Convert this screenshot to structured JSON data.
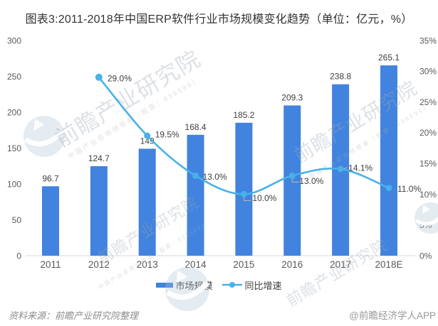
{
  "title": "图表3:2011-2018年中国ERP软件行业市场规模变化趋势（单位：亿元，%）",
  "chart_data": {
    "type": "bar",
    "combo": "bar+line",
    "categories": [
      "2011",
      "2012",
      "2013",
      "2014",
      "2015",
      "2016",
      "2017",
      "2018E"
    ],
    "series": [
      {
        "name": "市场规模",
        "type": "bar",
        "axis": "left",
        "unit": "亿元",
        "values": [
          96.7,
          124.7,
          149,
          168.4,
          185.2,
          209.3,
          238.8,
          265.1
        ],
        "labels": [
          "96.7",
          "124.7",
          "149",
          "168.4",
          "185.2",
          "209.3",
          "238.8",
          "265.1"
        ],
        "color": "#4183de"
      },
      {
        "name": "同比增速",
        "type": "line",
        "axis": "right",
        "unit": "%",
        "values": [
          null,
          29.0,
          19.5,
          13.0,
          10.0,
          13.0,
          14.1,
          11.0
        ],
        "labels": [
          null,
          "29.0%",
          "19.5%",
          "13.0%",
          "10.0%",
          "13.0%",
          "14.1%",
          "11.0%"
        ],
        "color": "#47b1e8"
      }
    ],
    "left_axis": {
      "ticks": [
        "300",
        "250",
        "200",
        "150",
        "100",
        "50",
        "0"
      ],
      "min": 0,
      "max": 300
    },
    "right_axis": {
      "ticks": [
        "35%",
        "30%",
        "25%",
        "20%",
        "15%",
        "10%",
        "5%",
        "0%"
      ],
      "min": 0,
      "max": 35
    },
    "grid": false,
    "legend_position": "bottom",
    "xlabel": "",
    "ylabel": ""
  },
  "legend": {
    "items": [
      {
        "label": "市场规模",
        "marker": "bar",
        "color": "#4183de"
      },
      {
        "label": "同比增速",
        "marker": "line",
        "color": "#47b1e8"
      }
    ]
  },
  "footer": {
    "source": "资料来源：前瞻产业研究院整理",
    "credit": "@前瞻经济学人APP"
  },
  "watermark": {
    "brand": "前瞻产业研究院",
    "tagline": "中国产业咨询领导者（股票：839599）"
  },
  "colors": {
    "bar": "#4183de",
    "line": "#47b1e8",
    "axis_line": "#d9d9d9",
    "value_label": "#404040",
    "tick_label": "#595959",
    "title": "#333333",
    "leader": "#cbb9a2"
  }
}
